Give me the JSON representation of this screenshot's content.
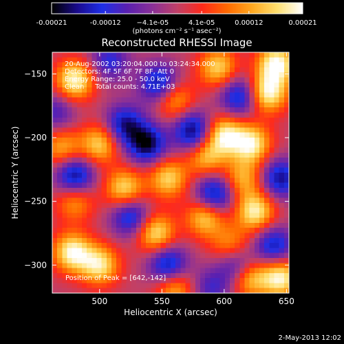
{
  "chart_data": {
    "type": "heatmap",
    "title": "Reconstructed RHESSI Image",
    "xlabel": "Heliocentric X (arcsec)",
    "ylabel": "Heliocentric Y (arcsec)",
    "xlim": [
      462,
      652
    ],
    "ylim": [
      -322,
      -133
    ],
    "x_ticks": [
      500,
      550,
      600,
      650
    ],
    "y_ticks": [
      -150,
      -200,
      -250,
      -300
    ],
    "colorbar": {
      "min": -0.00021,
      "max": 0.00021,
      "tick_values": [
        -0.00021,
        -0.00012,
        -4.1e-05,
        4.1e-05,
        0.00012,
        0.00021
      ],
      "tick_labels": [
        "-0.00021",
        "-0.00012",
        "−4.1e-05",
        "4.1e-05",
        "0.00012",
        "0.00021"
      ],
      "unit_label": "(photons cm⁻² s⁻¹ asec⁻²)",
      "colormap": [
        "#000000",
        "#1a0a8c",
        "#1e2fe8",
        "#5a20b0",
        "#8a3098",
        "#c04068",
        "#ff2a1a",
        "#ff6a00",
        "#ffa820",
        "#ffe070",
        "#ffffff"
      ]
    },
    "annotations": [
      "20-Aug-2002 03:20:04.000 to 03:24:34.000",
      "Detectors: 4F 5F 6F 7F 8F, Att 0",
      "Energy Range: 25.0 - 50.0 keV",
      "Clean     Total counts: 4.71E+03"
    ],
    "peak_label": "Position of Peak = [642,-142]",
    "peak": [
      642,
      -142
    ],
    "blobs": [
      {
        "x": 480,
        "y": -155,
        "value": 0.0002
      },
      {
        "x": 470,
        "y": -208,
        "value": 0.00013
      },
      {
        "x": 500,
        "y": -205,
        "value": 0.00016
      },
      {
        "x": 520,
        "y": -240,
        "value": 0.00017
      },
      {
        "x": 555,
        "y": -232,
        "value": 0.00016
      },
      {
        "x": 585,
        "y": -215,
        "value": 0.00014
      },
      {
        "x": 600,
        "y": -198,
        "value": 0.00019
      },
      {
        "x": 560,
        "y": -170,
        "value": 0.00014
      },
      {
        "x": 622,
        "y": -205,
        "value": 0.00019
      },
      {
        "x": 635,
        "y": -165,
        "value": 0.0002
      },
      {
        "x": 642,
        "y": -142,
        "value": 0.00021
      },
      {
        "x": 595,
        "y": -145,
        "value": 0.00016
      },
      {
        "x": 545,
        "y": -275,
        "value": 0.00018
      },
      {
        "x": 585,
        "y": -262,
        "value": 0.00017
      },
      {
        "x": 625,
        "y": -258,
        "value": 0.00019
      },
      {
        "x": 615,
        "y": -232,
        "value": 0.00013
      },
      {
        "x": 478,
        "y": -290,
        "value": 0.0002
      },
      {
        "x": 500,
        "y": -300,
        "value": 0.00018
      },
      {
        "x": 480,
        "y": -250,
        "value": 0.00012
      },
      {
        "x": 560,
        "y": -318,
        "value": 0.00014
      },
      {
        "x": 620,
        "y": -310,
        "value": 0.00016
      },
      {
        "x": 645,
        "y": -310,
        "value": 0.0002
      },
      {
        "x": 605,
        "y": -285,
        "value": 0.00012
      },
      {
        "x": 575,
        "y": -195,
        "value": -0.0002
      },
      {
        "x": 538,
        "y": -205,
        "value": -0.0002
      },
      {
        "x": 480,
        "y": -230,
        "value": -0.00019
      },
      {
        "x": 520,
        "y": -190,
        "value": -0.00017
      },
      {
        "x": 548,
        "y": -158,
        "value": -0.00018
      },
      {
        "x": 612,
        "y": -168,
        "value": -0.00016
      },
      {
        "x": 592,
        "y": -245,
        "value": -0.00019
      },
      {
        "x": 645,
        "y": -232,
        "value": -0.00017
      },
      {
        "x": 555,
        "y": -300,
        "value": -0.00018
      },
      {
        "x": 525,
        "y": -262,
        "value": -0.00016
      },
      {
        "x": 610,
        "y": -300,
        "value": -0.00015
      },
      {
        "x": 640,
        "y": -285,
        "value": -0.00016
      },
      {
        "x": 465,
        "y": -180,
        "value": -0.0001
      },
      {
        "x": 508,
        "y": -140,
        "value": -0.00012
      },
      {
        "x": 590,
        "y": -318,
        "value": -0.0001
      }
    ]
  },
  "footer": {
    "timestamp": "2-May-2013 12:02"
  }
}
